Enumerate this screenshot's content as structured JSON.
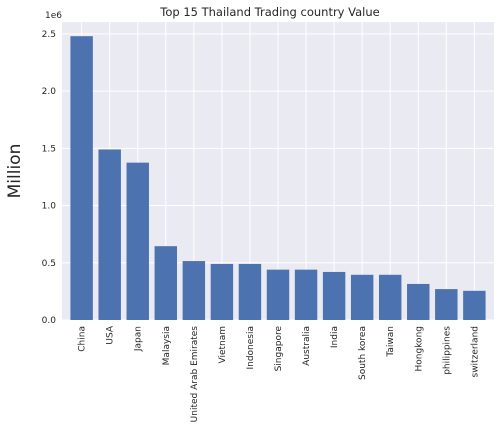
{
  "chart_data": {
    "type": "bar",
    "title": "Top 15 Thailand Trading country Value",
    "xlabel": "",
    "ylabel": "Million",
    "y_offset_label": "1e6",
    "categories": [
      "China",
      "USA",
      "Japan",
      "Malaysia",
      "United Arab Emirates",
      "Vietnam",
      "Indonesia",
      "Singapore",
      "Australia",
      "India",
      "South korea",
      "Taiwan",
      "Hongkong",
      "philippines",
      "switzerland"
    ],
    "values": [
      2480000,
      1490000,
      1375000,
      645000,
      515000,
      490000,
      490000,
      440000,
      440000,
      420000,
      395000,
      395000,
      315000,
      270000,
      255000
    ],
    "y_ticks": [
      0,
      500000,
      1000000,
      1500000,
      2000000,
      2500000
    ],
    "y_tick_labels": [
      "0.0",
      "0.5",
      "1.0",
      "1.5",
      "2.0",
      "2.5"
    ],
    "ylim": [
      0,
      2604000
    ],
    "grid": true,
    "legend": "none",
    "colors": {
      "bar": "#4c72b0",
      "plot_bg": "#eaeaf2",
      "grid": "#ffffff"
    }
  }
}
